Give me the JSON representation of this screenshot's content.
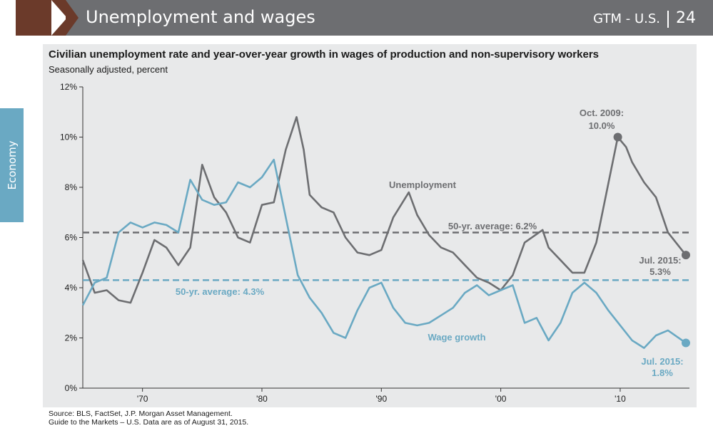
{
  "header": {
    "title": "Unemployment and wages",
    "section": "GTM - U.S.",
    "page": "24"
  },
  "side_tab": {
    "label": "Economy"
  },
  "chart_title": "Civilian unemployment rate and year-over-year growth in wages of production and non-supervisory workers",
  "chart_subtitle": "Seasonally adjusted, percent",
  "footer": {
    "line1": "Source: BLS, FactSet, J.P. Morgan Asset Management.",
    "line2": "Guide to the Markets – U.S. Data are as of August 31, 2015."
  },
  "colors": {
    "unemployment": "#6d6e71",
    "wages": "#6aa9c3",
    "panel": "#e8e9ea"
  },
  "chart_data": {
    "type": "line",
    "x_range": [
      1965,
      2015.8
    ],
    "ylim": [
      0,
      12
    ],
    "y_ticks": [
      0,
      2,
      4,
      6,
      8,
      10,
      12
    ],
    "y_tick_labels": [
      "0%",
      "2%",
      "4%",
      "6%",
      "8%",
      "10%",
      "12%"
    ],
    "x_ticks": [
      1970,
      1980,
      1990,
      2000,
      2010
    ],
    "x_tick_labels": [
      "'70",
      "'80",
      "'90",
      "'00",
      "'10"
    ],
    "series": [
      {
        "name": "Unemployment",
        "label": "Unemployment",
        "points": [
          [
            1965,
            5.1
          ],
          [
            1966,
            3.8
          ],
          [
            1967,
            3.9
          ],
          [
            1968,
            3.5
          ],
          [
            1969,
            3.4
          ],
          [
            1970,
            4.6
          ],
          [
            1971,
            5.9
          ],
          [
            1972,
            5.6
          ],
          [
            1973,
            4.9
          ],
          [
            1974,
            5.6
          ],
          [
            1975,
            8.9
          ],
          [
            1976,
            7.6
          ],
          [
            1977,
            7.0
          ],
          [
            1978,
            6.0
          ],
          [
            1979,
            5.8
          ],
          [
            1980,
            7.3
          ],
          [
            1981,
            7.4
          ],
          [
            1982,
            9.5
          ],
          [
            1982.9,
            10.8
          ],
          [
            1983.5,
            9.5
          ],
          [
            1984,
            7.7
          ],
          [
            1985,
            7.2
          ],
          [
            1986,
            7.0
          ],
          [
            1987,
            6.0
          ],
          [
            1988,
            5.4
          ],
          [
            1989,
            5.3
          ],
          [
            1990,
            5.5
          ],
          [
            1991,
            6.8
          ],
          [
            1992.3,
            7.8
          ],
          [
            1993,
            6.9
          ],
          [
            1994,
            6.1
          ],
          [
            1995,
            5.6
          ],
          [
            1996,
            5.4
          ],
          [
            1997,
            4.9
          ],
          [
            1998,
            4.4
          ],
          [
            1999,
            4.2
          ],
          [
            2000,
            3.9
          ],
          [
            2001,
            4.5
          ],
          [
            2002,
            5.8
          ],
          [
            2003.5,
            6.3
          ],
          [
            2004,
            5.6
          ],
          [
            2005,
            5.1
          ],
          [
            2006,
            4.6
          ],
          [
            2007,
            4.6
          ],
          [
            2008,
            5.8
          ],
          [
            2009.8,
            10.0
          ],
          [
            2010.5,
            9.6
          ],
          [
            2011,
            9.0
          ],
          [
            2012,
            8.2
          ],
          [
            2013,
            7.6
          ],
          [
            2014,
            6.2
          ],
          [
            2015.5,
            5.3
          ]
        ]
      },
      {
        "name": "Wage growth",
        "label": "Wage growth",
        "points": [
          [
            1965,
            3.3
          ],
          [
            1966,
            4.2
          ],
          [
            1967,
            4.4
          ],
          [
            1968,
            6.2
          ],
          [
            1969,
            6.6
          ],
          [
            1970,
            6.4
          ],
          [
            1971,
            6.6
          ],
          [
            1972,
            6.5
          ],
          [
            1973,
            6.2
          ],
          [
            1974,
            8.3
          ],
          [
            1975,
            7.5
          ],
          [
            1976,
            7.3
          ],
          [
            1977,
            7.4
          ],
          [
            1978,
            8.2
          ],
          [
            1979,
            8.0
          ],
          [
            1980,
            8.4
          ],
          [
            1981,
            9.1
          ],
          [
            1982,
            6.8
          ],
          [
            1983,
            4.5
          ],
          [
            1984,
            3.6
          ],
          [
            1985,
            3.0
          ],
          [
            1986,
            2.2
          ],
          [
            1987,
            2.0
          ],
          [
            1988,
            3.1
          ],
          [
            1989,
            4.0
          ],
          [
            1990,
            4.2
          ],
          [
            1991,
            3.2
          ],
          [
            1992,
            2.6
          ],
          [
            1993,
            2.5
          ],
          [
            1994,
            2.6
          ],
          [
            1995,
            2.9
          ],
          [
            1996,
            3.2
          ],
          [
            1997,
            3.8
          ],
          [
            1998,
            4.1
          ],
          [
            1999,
            3.7
          ],
          [
            2000,
            3.9
          ],
          [
            2001,
            4.1
          ],
          [
            2002,
            2.6
          ],
          [
            2003,
            2.8
          ],
          [
            2004,
            1.9
          ],
          [
            2005,
            2.6
          ],
          [
            2006,
            3.8
          ],
          [
            2007,
            4.2
          ],
          [
            2008,
            3.8
          ],
          [
            2009,
            3.1
          ],
          [
            2010,
            2.5
          ],
          [
            2011,
            1.9
          ],
          [
            2012,
            1.6
          ],
          [
            2013,
            2.1
          ],
          [
            2014,
            2.3
          ],
          [
            2015.5,
            1.8
          ]
        ]
      }
    ],
    "averages": [
      {
        "name": "Unemployment 50-yr average",
        "value": 6.2,
        "label": "50-yr. average: 6.2%"
      },
      {
        "name": "Wage growth 50-yr average",
        "value": 4.3,
        "label": "50-yr. average: 4.3%"
      }
    ],
    "annotations": [
      {
        "x": 2009.8,
        "y": 10.0,
        "series": "Unemployment",
        "line1": "Oct. 2009:",
        "line2": "10.0%"
      },
      {
        "x": 2015.5,
        "y": 5.3,
        "series": "Unemployment",
        "line1": "Jul. 2015:",
        "line2": "5.3%"
      },
      {
        "x": 2015.5,
        "y": 1.8,
        "series": "Wage growth",
        "line1": "Jul. 2015:",
        "line2": "1.8%"
      }
    ]
  }
}
